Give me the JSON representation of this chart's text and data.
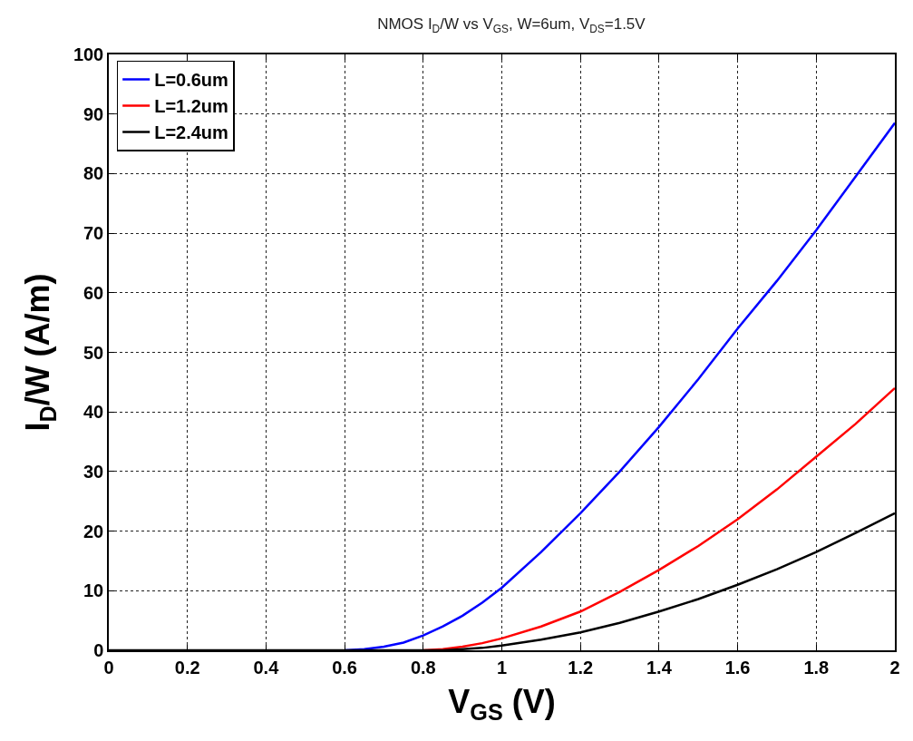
{
  "chart_data": {
    "type": "line",
    "title": "NMOS I$_{D}$/W vs V$_{GS}$, W=6um, V$_{DS}$=1.5V",
    "xlabel": "V$_{GS}$ (V)",
    "ylabel": "I$_{D}$/W (A/m)",
    "x": [
      0,
      0.2,
      0.4,
      0.6,
      0.65,
      0.7,
      0.75,
      0.8,
      0.85,
      0.9,
      0.95,
      1.0,
      1.1,
      1.2,
      1.3,
      1.4,
      1.5,
      1.6,
      1.7,
      1.8,
      1.9,
      2.0
    ],
    "series": [
      {
        "name": "L=0.6um",
        "color": "#0000ff",
        "values": [
          null,
          null,
          null,
          0,
          0.2,
          0.6,
          1.3,
          2.5,
          4,
          5.8,
          8,
          10.5,
          16.5,
          23,
          30,
          37.5,
          45.5,
          54,
          62,
          70.5,
          79.5,
          88.5
        ]
      },
      {
        "name": "L=1.2um",
        "color": "#ff0000",
        "values": [
          null,
          null,
          null,
          null,
          null,
          null,
          null,
          0,
          0.2,
          0.6,
          1.2,
          2,
          4,
          6.5,
          9.8,
          13.5,
          17.5,
          22,
          27,
          32.5,
          38,
          44
        ]
      },
      {
        "name": "L=2.4um",
        "color": "#000000",
        "values": [
          0,
          0,
          0,
          0,
          0,
          0,
          0,
          0,
          0,
          0.2,
          0.4,
          0.8,
          1.8,
          3,
          4.6,
          6.5,
          8.6,
          11,
          13.6,
          16.5,
          19.7,
          23
        ]
      }
    ],
    "xlim": [
      0,
      2
    ],
    "xticks": [
      0,
      0.2,
      0.4,
      0.6,
      0.8,
      1,
      1.2,
      1.4,
      1.6,
      1.8,
      2
    ],
    "ylim": [
      0,
      100
    ],
    "yticks": [
      0,
      10,
      20,
      30,
      40,
      50,
      60,
      70,
      80,
      90,
      100
    ],
    "grid": true,
    "legend": "top left",
    "line_style": "solid"
  }
}
